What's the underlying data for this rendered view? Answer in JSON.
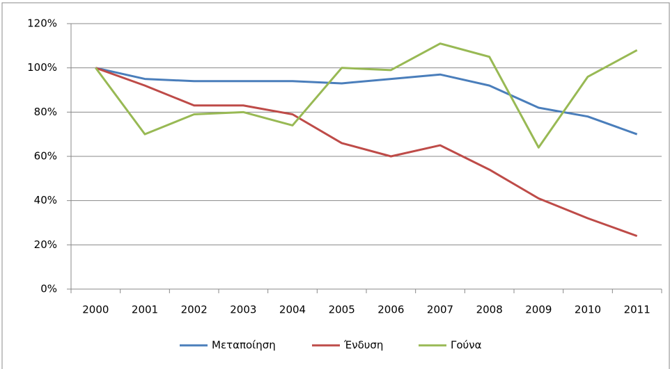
{
  "chart_data": {
    "type": "line",
    "categories": [
      "2000",
      "2001",
      "2002",
      "2003",
      "2004",
      "2005",
      "2006",
      "2007",
      "2008",
      "2009",
      "2010",
      "2011"
    ],
    "series": [
      {
        "name": "Μεταποίηση",
        "color": "#4a7ebb",
        "values": [
          100,
          95,
          94,
          94,
          94,
          93,
          95,
          97,
          92,
          82,
          78,
          70
        ]
      },
      {
        "name": "Ένδυση",
        "color": "#be4b48",
        "values": [
          100,
          92,
          83,
          83,
          79,
          66,
          60,
          65,
          54,
          41,
          32,
          24
        ]
      },
      {
        "name": "Γούνα",
        "color": "#98b954",
        "values": [
          100,
          70,
          79,
          80,
          74,
          100,
          99,
          111,
          105,
          64,
          96,
          108
        ]
      }
    ],
    "ylim": [
      0,
      120
    ],
    "yticks": [
      {
        "value": 0,
        "label": "0%"
      },
      {
        "value": 20,
        "label": "20%"
      },
      {
        "value": 40,
        "label": "40%"
      },
      {
        "value": 60,
        "label": "60%"
      },
      {
        "value": 80,
        "label": "80%"
      },
      {
        "value": 100,
        "label": "100%"
      },
      {
        "value": 120,
        "label": "120%"
      }
    ],
    "grid": true,
    "legend": "bottom"
  }
}
